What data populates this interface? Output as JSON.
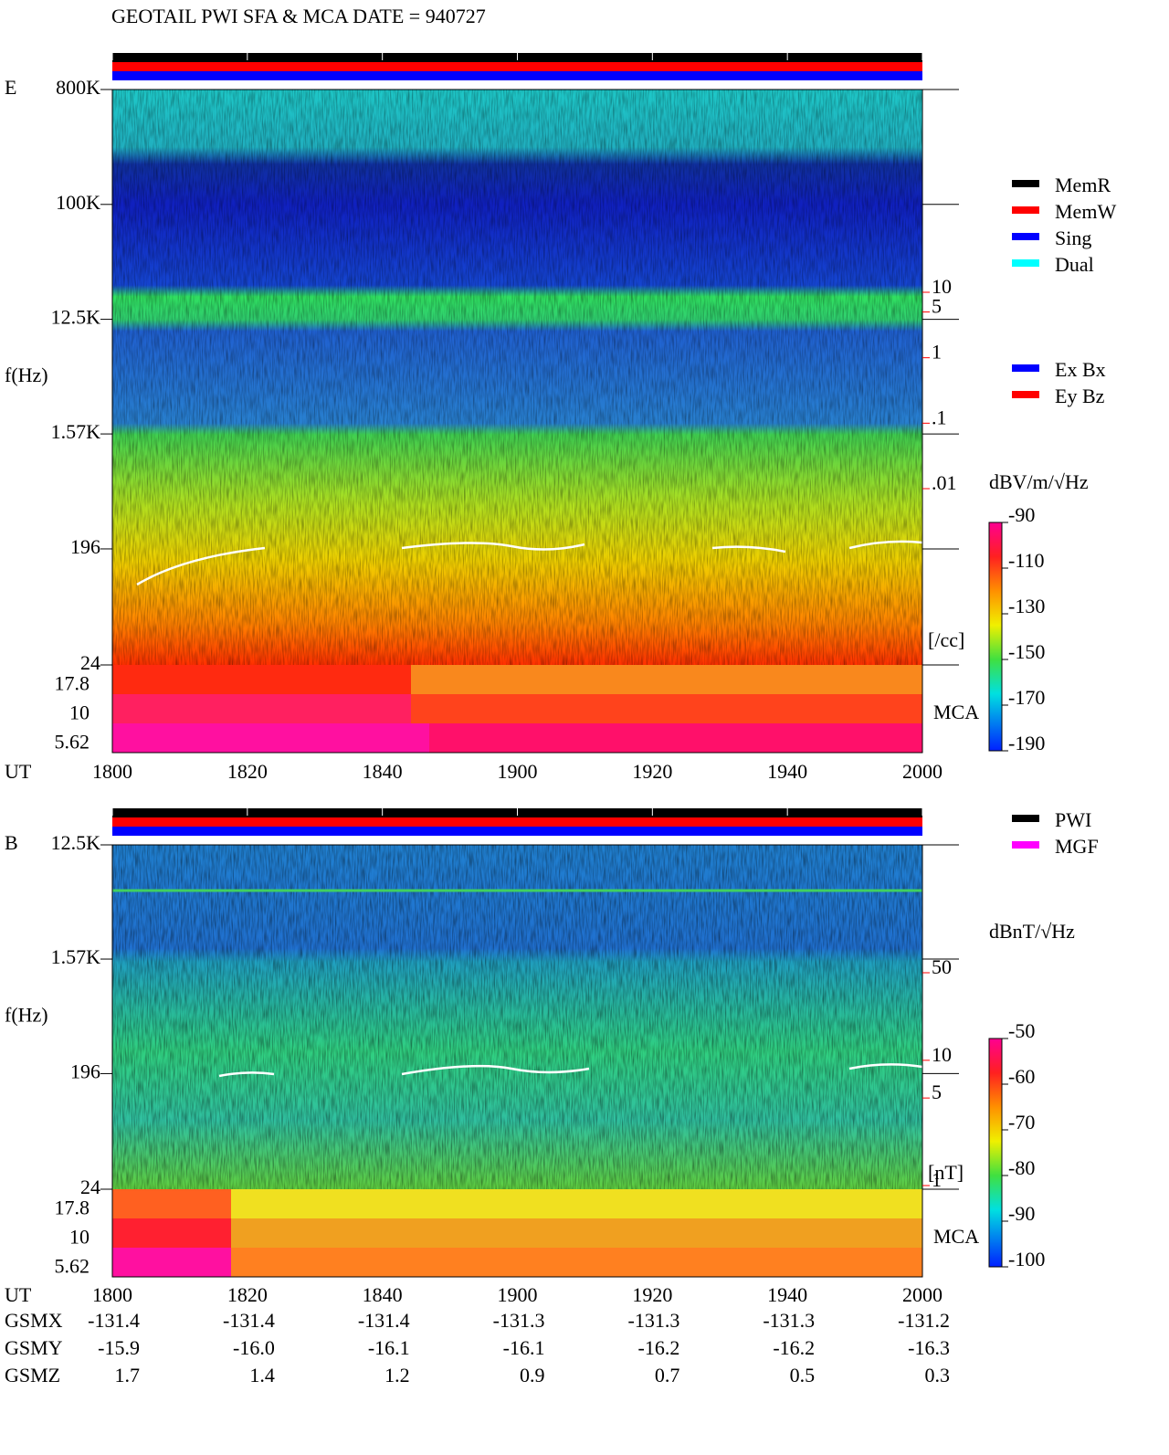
{
  "title": "GEOTAIL  PWI SFA & MCA  DATE = 940727",
  "chart_data": [
    {
      "type": "spectrogram",
      "panel": "E",
      "ylabel": "f(Hz)",
      "ylog": true,
      "ylim": [
        24,
        800000
      ],
      "yticks": [
        {
          "value": 800000,
          "label": "800K"
        },
        {
          "value": 100000,
          "label": "100K"
        },
        {
          "value": 12500,
          "label": "12.5K"
        },
        {
          "value": 1570,
          "label": "1.57K"
        },
        196,
        24
      ],
      "mca_label": "MCA",
      "mca_ticks": [
        17.8,
        10,
        5.62
      ],
      "xlabel": "UT",
      "categories": [
        "1800",
        "1820",
        "1840",
        "1900",
        "1920",
        "1940",
        "2000"
      ],
      "status_legend": [
        {
          "name": "MemR",
          "color": "#000000"
        },
        {
          "name": "MemW",
          "color": "#ff0000"
        },
        {
          "name": "Sing",
          "color": "#0000ff"
        },
        {
          "name": "Dual",
          "color": "#00ffff"
        }
      ],
      "component_legend": [
        {
          "name": "Ex Bx",
          "color": "#0000ff"
        },
        {
          "name": "Ey Bz",
          "color": "#ff0000"
        }
      ],
      "colorbar": {
        "label": "dBV/m/√Hz",
        "clim": [
          -190,
          -90
        ],
        "ticks": [
          -90,
          -110,
          -130,
          -150,
          -170,
          -190
        ]
      },
      "right_scale": {
        "label": "[/cc]",
        "color": "#ff0000",
        "log": true,
        "lim": [
          0.01,
          10
        ],
        "ticks": [
          10,
          5,
          1,
          {
            "value": 0.1,
            "label": ".1"
          },
          {
            "value": 0.01,
            "label": ".01"
          }
        ]
      }
    },
    {
      "type": "spectrogram",
      "panel": "B",
      "ylabel": "f(Hz)",
      "ylog": true,
      "ylim": [
        24,
        12500
      ],
      "yticks": [
        {
          "value": 12500,
          "label": "12.5K"
        },
        {
          "value": 1570,
          "label": "1.57K"
        },
        196,
        24
      ],
      "mca_label": "MCA",
      "mca_ticks": [
        17.8,
        10,
        5.62
      ],
      "xlabel": "UT",
      "categories": [
        "1800",
        "1820",
        "1840",
        "1900",
        "1920",
        "1940",
        "2000"
      ],
      "status_legend": [
        {
          "name": "PWI",
          "color": "#000000"
        },
        {
          "name": "MGF",
          "color": "#ff00ff"
        }
      ],
      "colorbar": {
        "label": "dBnT/√Hz",
        "clim": [
          -100,
          -50
        ],
        "ticks": [
          -50,
          -60,
          -70,
          -80,
          -90,
          -100
        ]
      },
      "right_scale": {
        "label": "[nT]",
        "color": "#ff0000",
        "log": true,
        "lim": [
          1,
          50
        ],
        "ticks": [
          50,
          10,
          5,
          1
        ]
      }
    }
  ],
  "orbit": {
    "rows": [
      {
        "label": "GSMX",
        "values": [
          "-131.4",
          "-131.4",
          "-131.4",
          "-131.3",
          "-131.3",
          "-131.3",
          "-131.2"
        ]
      },
      {
        "label": "GSMY",
        "values": [
          "-15.9",
          "-16.0",
          "-16.1",
          "-16.1",
          "-16.2",
          "-16.2",
          "-16.3"
        ]
      },
      {
        "label": "GSMZ",
        "values": [
          "1.7",
          "1.4",
          "1.2",
          "0.9",
          "0.7",
          "0.5",
          "0.3"
        ]
      }
    ]
  }
}
